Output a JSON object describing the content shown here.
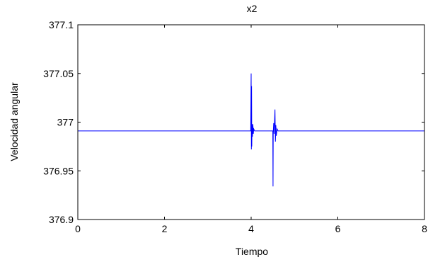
{
  "chart_data": {
    "type": "line",
    "title": "x2",
    "xlabel": "Tiempo",
    "ylabel": "Velocidad angular",
    "xlim": [
      0,
      8
    ],
    "ylim": [
      376.9,
      377.1
    ],
    "xticks": [
      0,
      2,
      4,
      6,
      8
    ],
    "xtick_labels": [
      "0",
      "2",
      "4",
      "6",
      "8"
    ],
    "yticks": [
      376.9,
      376.95,
      377.0,
      377.05,
      377.1
    ],
    "ytick_labels": [
      "376.9",
      "376.95",
      "377",
      "377.05",
      "377.1"
    ],
    "grid": false,
    "series": [
      {
        "color": "#0000ff",
        "x": [
          0,
          3.99,
          4.0,
          4.005,
          4.01,
          4.015,
          4.02,
          4.03,
          4.04,
          4.05,
          4.06,
          4.08,
          4.1,
          4.5,
          4.505,
          4.51,
          4.52,
          4.53,
          4.55,
          4.56,
          4.57,
          4.58,
          4.6,
          4.62,
          8
        ],
        "y": [
          376.991,
          376.991,
          377.05,
          376.972,
          377.037,
          376.975,
          376.998,
          376.985,
          376.998,
          376.988,
          376.993,
          376.991,
          376.991,
          376.991,
          376.934,
          376.99,
          376.999,
          376.988,
          377.013,
          376.98,
          376.997,
          376.986,
          376.993,
          376.991,
          376.991
        ]
      }
    ]
  }
}
